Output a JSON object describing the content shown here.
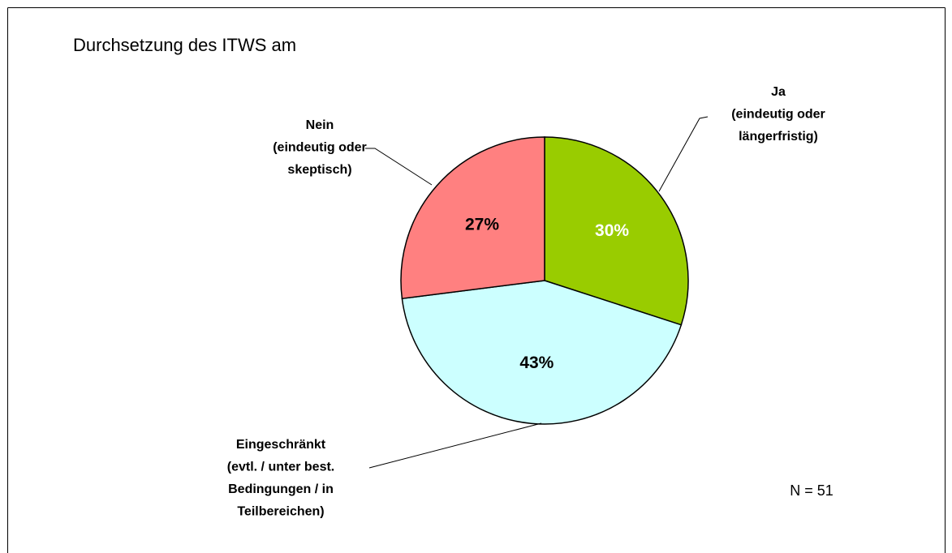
{
  "chart_data": {
    "type": "pie",
    "title": "Durchsetzung des ITWS am",
    "categories": [
      [
        "Ja",
        "(eindeutig oder",
        "längerfristig)"
      ],
      [
        "Eingeschränkt",
        "(evtl. / unter best.",
        "Bedingungen / in",
        "Teilbereichen)"
      ],
      [
        "Nein",
        "(eindeutig oder",
        "skeptisch)"
      ]
    ],
    "values": [
      30,
      43,
      27
    ],
    "value_labels": [
      "30%",
      "43%",
      "27%"
    ],
    "colors": [
      "#99cc00",
      "#ccffff",
      "#ff8080"
    ],
    "value_label_colors": [
      "#ffffff",
      "#000000",
      "#000000"
    ],
    "annotation": "N = 51"
  }
}
